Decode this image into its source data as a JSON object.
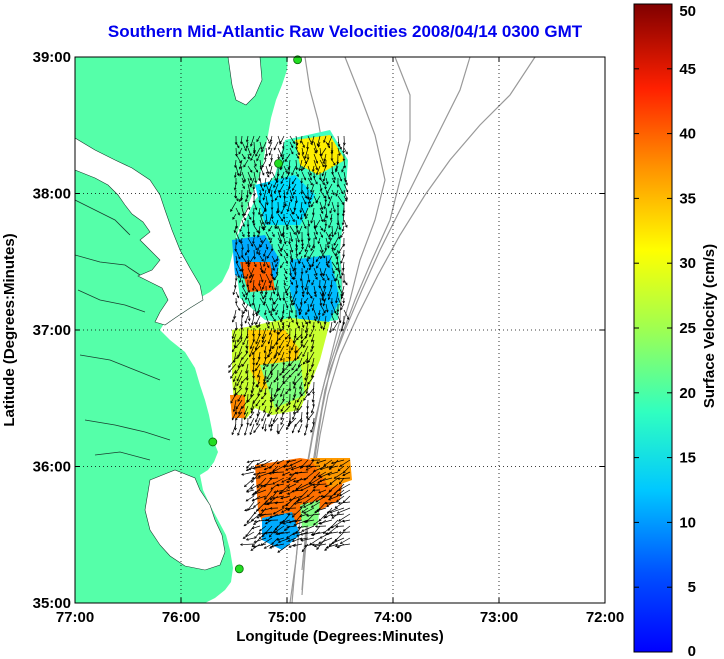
{
  "title": "Southern Mid-Atlantic Raw Velocities 2008/04/14 0300 GMT",
  "x_axis": {
    "label": "Longitude (Degrees:Minutes)",
    "ticks": [
      "77:00",
      "76:00",
      "75:00",
      "74:00",
      "73:00",
      "72:00"
    ]
  },
  "y_axis": {
    "label": "Latitude (Degrees:Minutes)",
    "ticks": [
      "39:00",
      "38:00",
      "37:00",
      "36:00",
      "35:00"
    ]
  },
  "colorbar": {
    "label": "Surface Velocity (cm/s)",
    "ticks": [
      "50",
      "45",
      "40",
      "35",
      "30",
      "25",
      "20",
      "15",
      "10",
      "5",
      "0"
    ],
    "min": 0,
    "max": 50
  },
  "colors": {
    "land": "#55ffa9",
    "title": "#0000ee",
    "station": "#22dd22"
  },
  "map": {
    "lon_range": [
      -77,
      -72
    ],
    "lat_range": [
      35,
      39
    ],
    "grid": true,
    "stations": [
      {
        "lon": -74.9,
        "lat": 38.98
      },
      {
        "lon": -75.08,
        "lat": 38.22
      },
      {
        "lon": -75.7,
        "lat": 36.18
      },
      {
        "lon": -75.45,
        "lat": 35.25
      }
    ]
  }
}
